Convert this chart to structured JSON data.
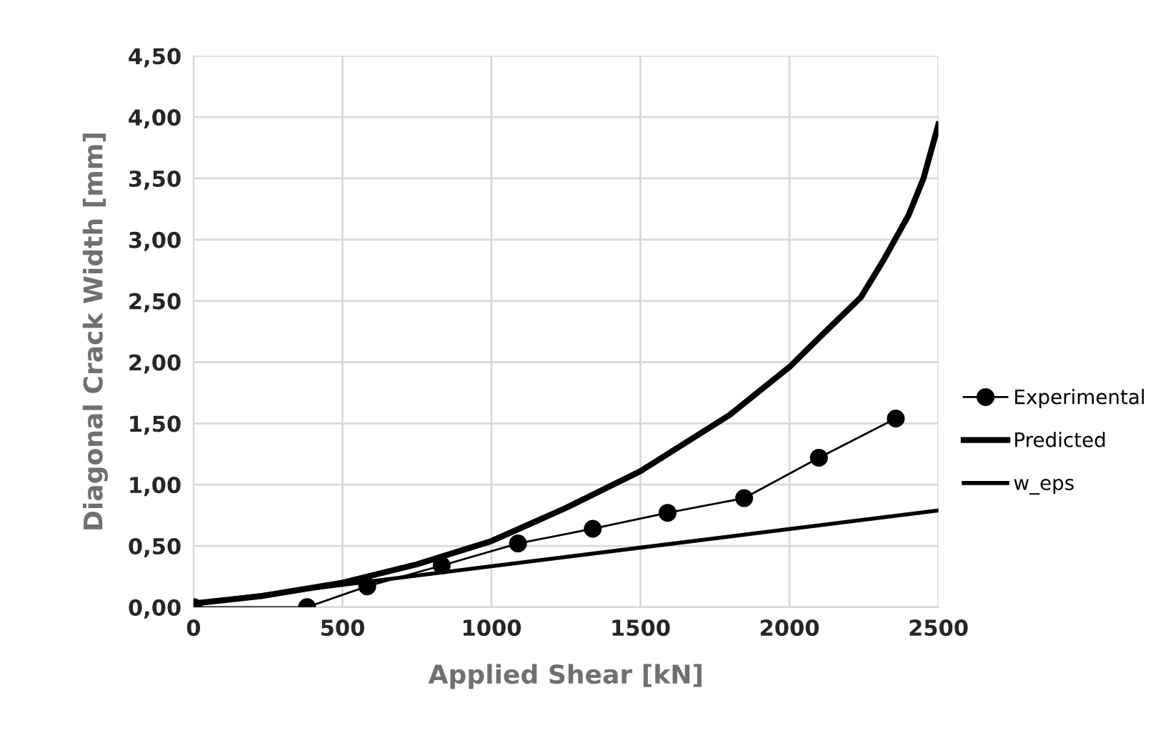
{
  "chart_data": {
    "type": "line",
    "xlabel": "Applied Shear [kN]",
    "ylabel": "Diagonal Crack Width [mm]",
    "series": [
      {
        "name": "Experimental",
        "color": "#000000",
        "marker": "circle",
        "x": [
          0,
          381,
          583,
          833,
          1089,
          1340,
          1591,
          1848,
          2099,
          2357
        ],
        "values": [
          0,
          0,
          0.17,
          0.34,
          0.52,
          0.64,
          0.77,
          0.89,
          1.22,
          1.54
        ]
      },
      {
        "name": "Predicted",
        "color": "#000000",
        "marker": "none",
        "x": [
          0,
          227,
          500,
          750,
          1000,
          1250,
          1500,
          1800,
          2000,
          2100,
          2240,
          2320,
          2400,
          2450,
          2500
        ],
        "values": [
          0.03,
          0.09,
          0.2,
          0.35,
          0.54,
          0.81,
          1.11,
          1.57,
          1.96,
          2.2,
          2.53,
          2.85,
          3.2,
          3.5,
          3.94
        ]
      },
      {
        "name": "w_eps",
        "color": "#000000",
        "marker": "none",
        "x": [
          0,
          2500
        ],
        "values": [
          0.03,
          0.79
        ]
      }
    ],
    "xlim": [
      0,
      2500
    ],
    "xticks": [
      0,
      500,
      1000,
      1500,
      2000,
      2500
    ],
    "ylim": [
      0,
      4.5
    ],
    "yticks": [
      {
        "value": 0,
        "label": "0,00"
      },
      {
        "value": 0.5,
        "label": "0,50"
      },
      {
        "value": 1,
        "label": "1,00"
      },
      {
        "value": 1.5,
        "label": "1,50"
      },
      {
        "value": 2,
        "label": "2,00"
      },
      {
        "value": 2.5,
        "label": "2,50"
      },
      {
        "value": 3,
        "label": "3,00"
      },
      {
        "value": 3.5,
        "label": "3,50"
      },
      {
        "value": 4,
        "label": "4,00"
      },
      {
        "value": 4.5,
        "label": "4,50"
      }
    ],
    "grid": true,
    "legend": "right",
    "line_style": "solid"
  }
}
